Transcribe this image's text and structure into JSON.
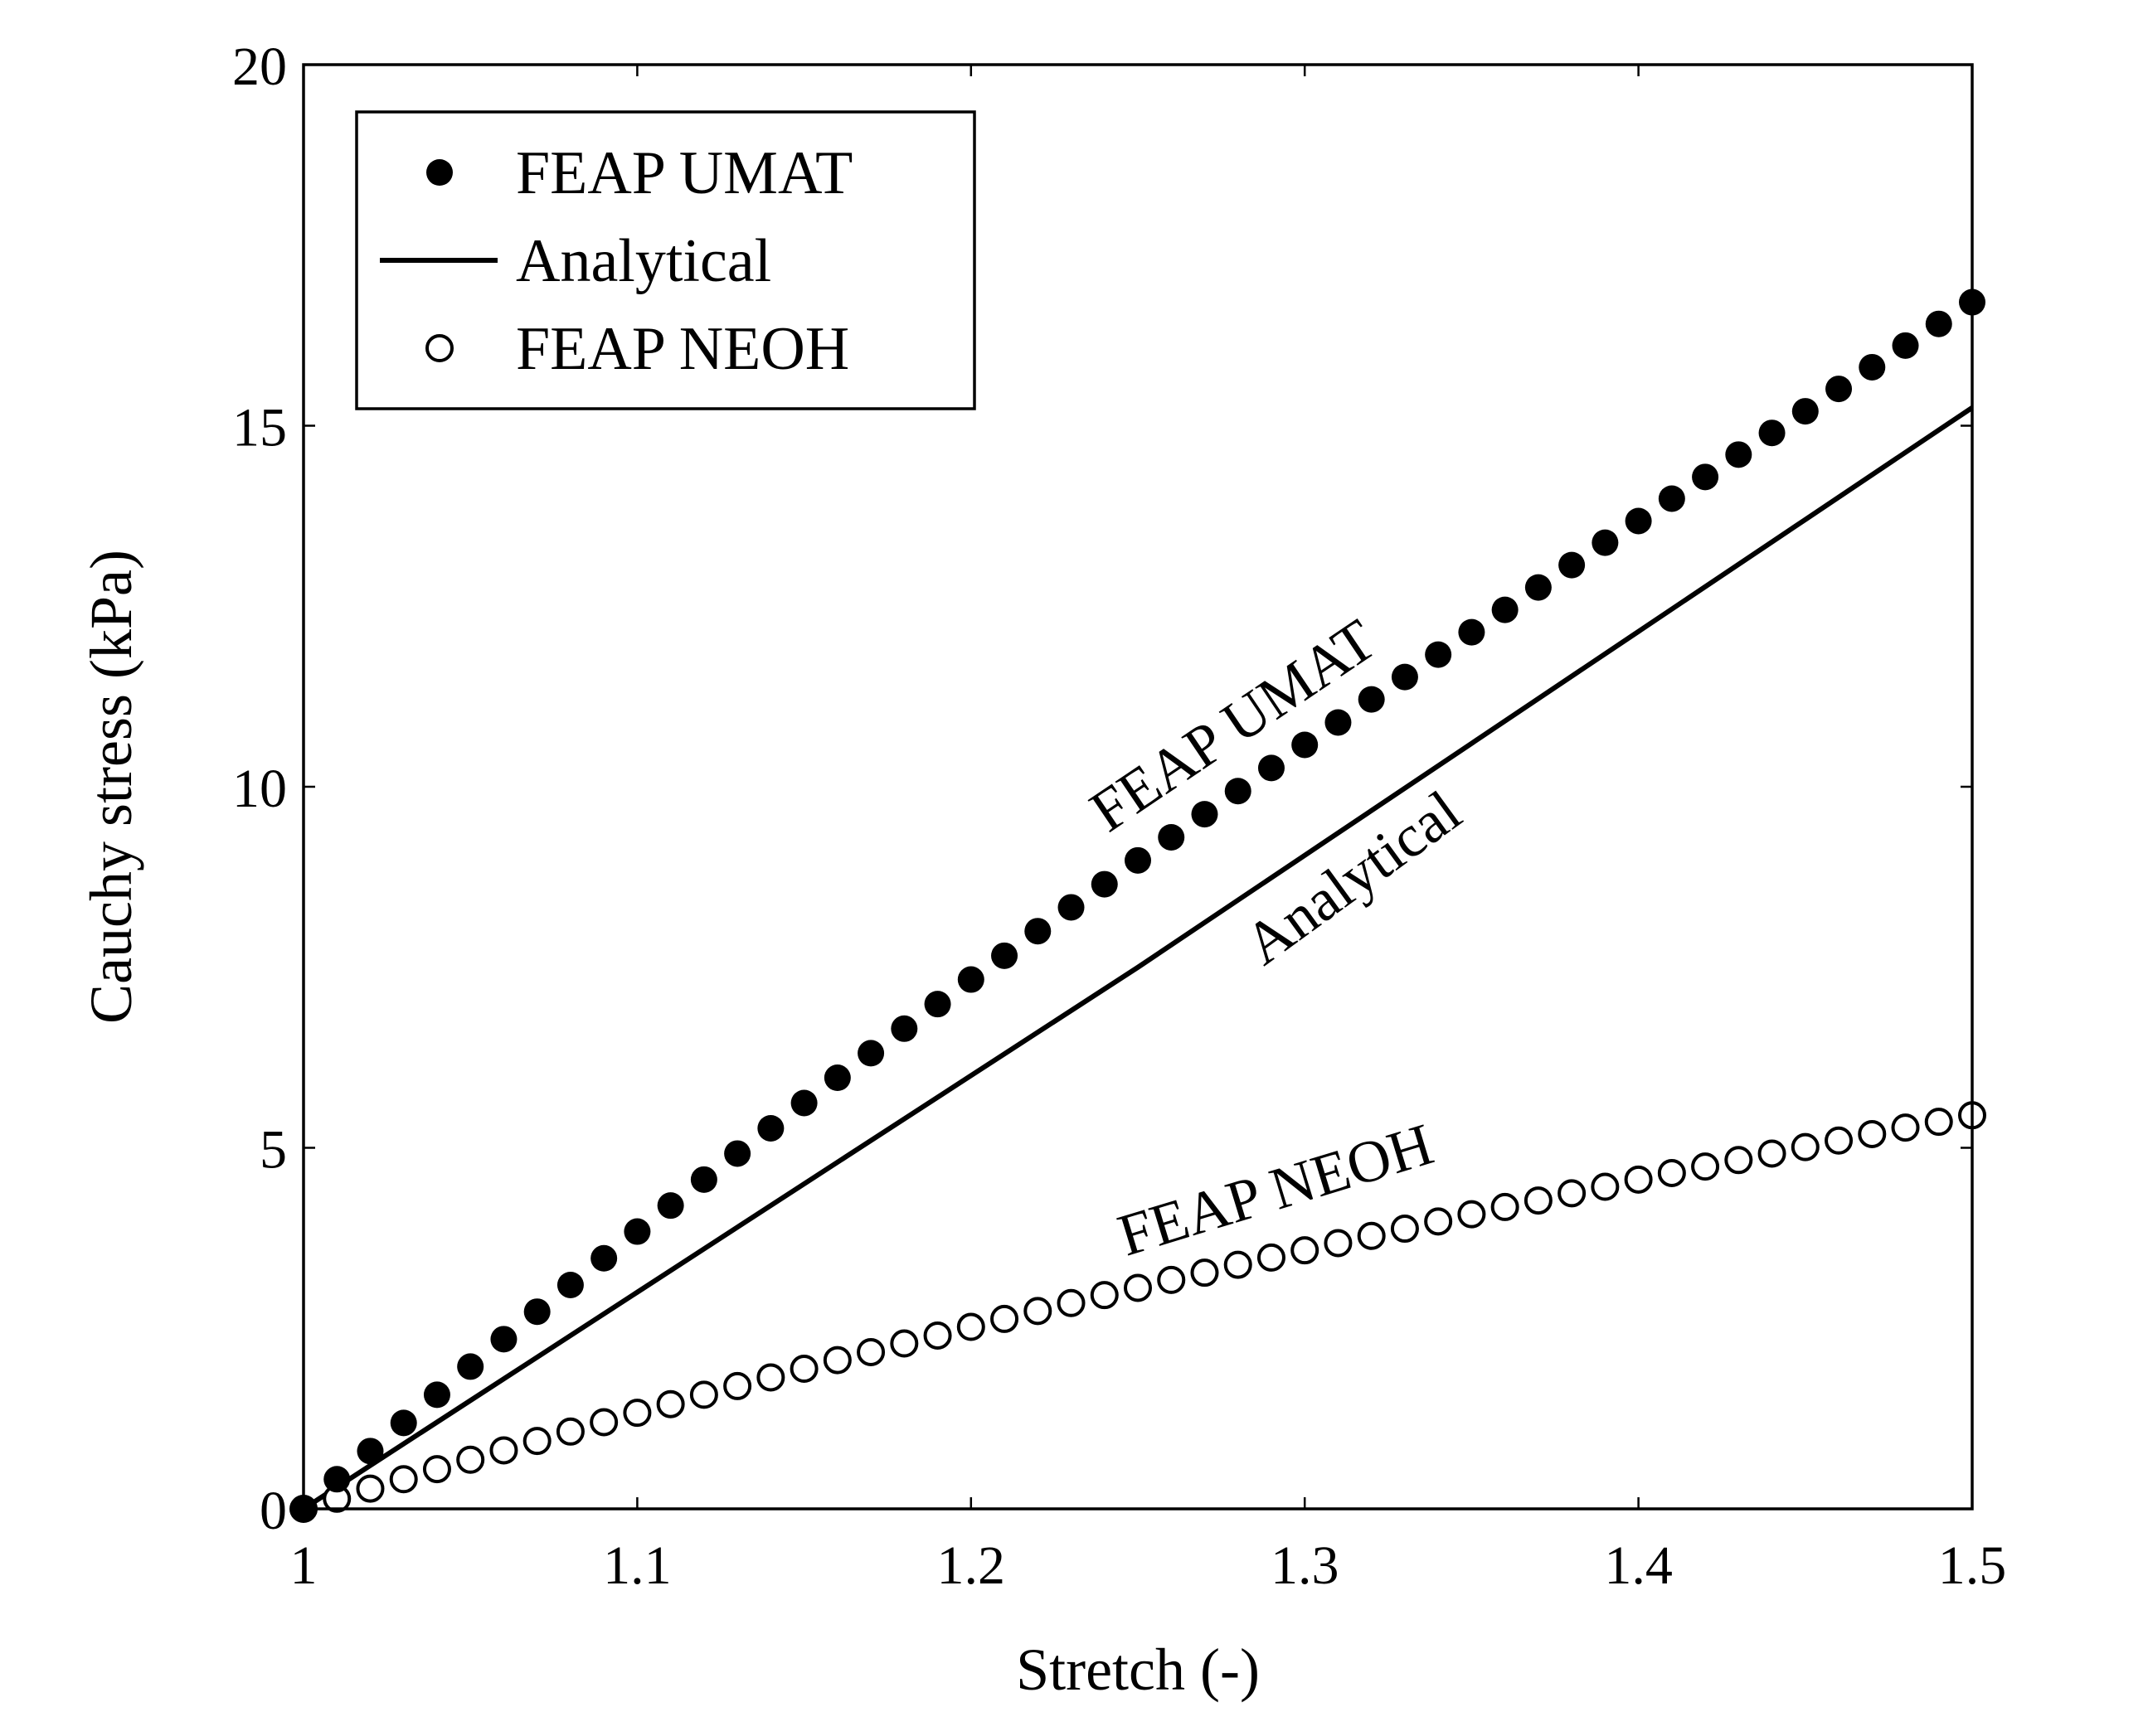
{
  "chart_data": {
    "type": "line",
    "xlabel": "Stretch (-)",
    "ylabel": "Cauchy stress (kPa)",
    "xlim": [
      1,
      1.5
    ],
    "ylim": [
      0,
      20
    ],
    "xticks": [
      1,
      1.1,
      1.2,
      1.3,
      1.4,
      1.5
    ],
    "xtick_labels": [
      "1",
      "1.1",
      "1.2",
      "1.3",
      "1.4",
      "1.5"
    ],
    "yticks": [
      0,
      5,
      10,
      15,
      20
    ],
    "ytick_labels": [
      "0",
      "5",
      "10",
      "15",
      "20"
    ],
    "grid": false,
    "legend": {
      "position": "top-left"
    },
    "annotations": {
      "umat": "FEAP UMAT",
      "analytical": "Analytical",
      "neoh": "FEAP NEOH"
    },
    "series": [
      {
        "name": "FEAP UMAT",
        "marker": "filled-circle",
        "color": "#000000",
        "x": [
          1,
          1.01,
          1.02,
          1.03,
          1.04,
          1.05,
          1.06,
          1.07,
          1.08,
          1.09,
          1.1,
          1.11,
          1.12,
          1.13,
          1.14,
          1.15,
          1.16,
          1.17,
          1.18,
          1.19,
          1.2,
          1.21,
          1.22,
          1.23,
          1.24,
          1.25,
          1.26,
          1.27,
          1.28,
          1.29,
          1.3,
          1.31,
          1.32,
          1.33,
          1.34,
          1.35,
          1.36,
          1.37,
          1.38,
          1.39,
          1.4,
          1.41,
          1.42,
          1.43,
          1.44,
          1.45,
          1.46,
          1.47,
          1.48,
          1.49,
          1.5
        ],
        "y": [
          0,
          0.41,
          0.8,
          1.19,
          1.58,
          1.97,
          2.35,
          2.73,
          3.1,
          3.47,
          3.84,
          4.2,
          4.56,
          4.92,
          5.27,
          5.62,
          5.97,
          6.31,
          6.65,
          6.99,
          7.33,
          7.66,
          8.0,
          8.33,
          8.65,
          8.98,
          9.3,
          9.62,
          9.94,
          10.26,
          10.58,
          10.89,
          11.21,
          11.52,
          11.83,
          12.14,
          12.45,
          12.76,
          13.07,
          13.38,
          13.68,
          13.99,
          14.29,
          14.6,
          14.9,
          15.2,
          15.51,
          15.81,
          16.11,
          16.41,
          16.71
        ]
      },
      {
        "name": "Analytical",
        "marker": "none",
        "color": "#000000",
        "x": [
          1,
          1.05,
          1.1,
          1.15,
          1.2,
          1.25,
          1.3,
          1.35,
          1.4,
          1.45,
          1.5
        ],
        "y": [
          0,
          1.5,
          3.0,
          4.5,
          6.0,
          7.5,
          9.05,
          10.6,
          12.15,
          13.7,
          15.25
        ]
      },
      {
        "name": "FEAP NEOH",
        "marker": "open-circle",
        "color": "#000000",
        "x": [
          1,
          1.01,
          1.02,
          1.03,
          1.04,
          1.05,
          1.06,
          1.07,
          1.08,
          1.09,
          1.1,
          1.11,
          1.12,
          1.13,
          1.14,
          1.15,
          1.16,
          1.17,
          1.18,
          1.19,
          1.2,
          1.21,
          1.22,
          1.23,
          1.24,
          1.25,
          1.26,
          1.27,
          1.28,
          1.29,
          1.3,
          1.31,
          1.32,
          1.33,
          1.34,
          1.35,
          1.36,
          1.37,
          1.38,
          1.39,
          1.4,
          1.41,
          1.42,
          1.43,
          1.44,
          1.45,
          1.46,
          1.47,
          1.48,
          1.49,
          1.5
        ],
        "y": [
          0,
          0.14,
          0.28,
          0.41,
          0.55,
          0.68,
          0.81,
          0.94,
          1.07,
          1.2,
          1.33,
          1.45,
          1.58,
          1.7,
          1.82,
          1.94,
          2.06,
          2.17,
          2.29,
          2.4,
          2.52,
          2.63,
          2.74,
          2.85,
          2.96,
          3.06,
          3.17,
          3.27,
          3.38,
          3.48,
          3.58,
          3.68,
          3.78,
          3.88,
          3.98,
          4.08,
          4.18,
          4.27,
          4.37,
          4.46,
          4.56,
          4.65,
          4.74,
          4.83,
          4.92,
          5.01,
          5.1,
          5.19,
          5.28,
          5.36,
          5.45
        ]
      }
    ]
  }
}
